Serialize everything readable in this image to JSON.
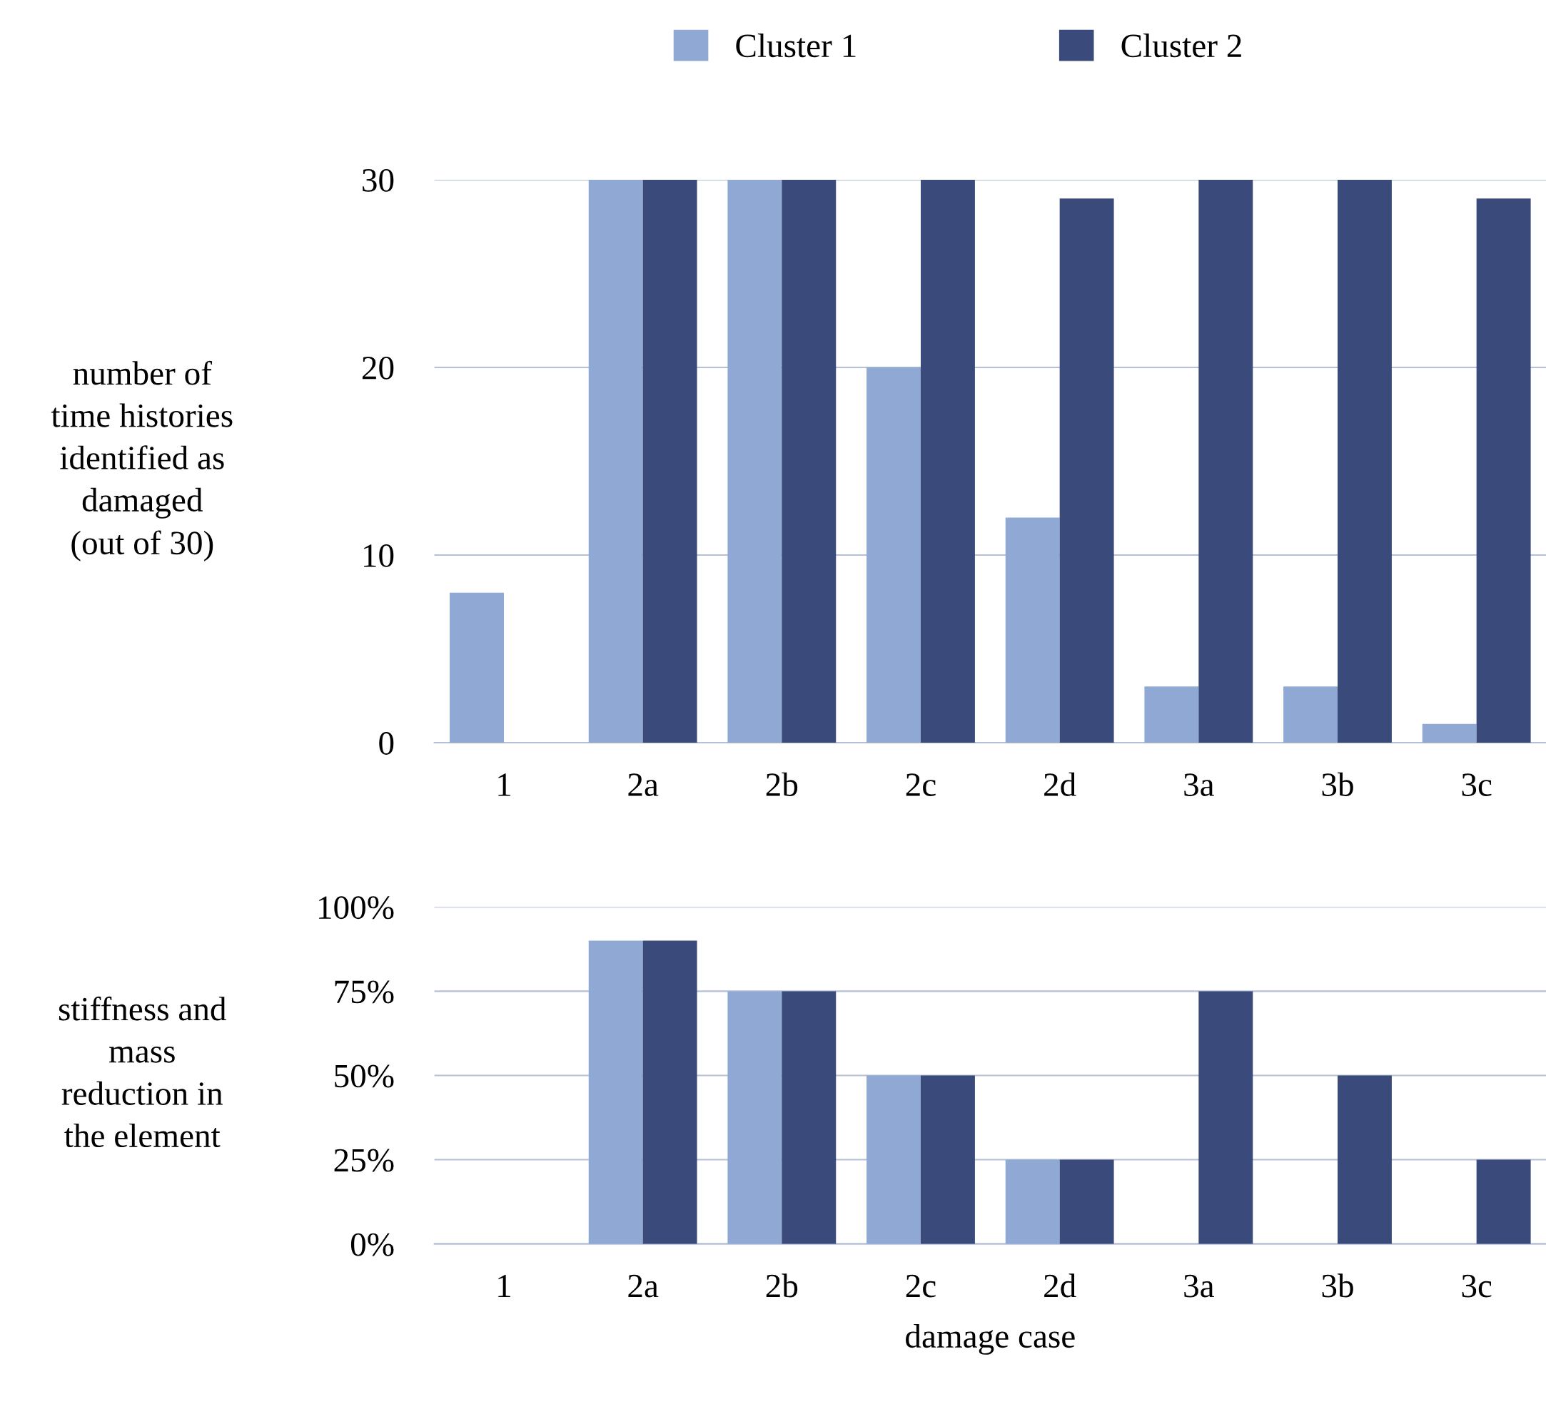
{
  "chart_data": [
    {
      "type": "bar",
      "categories": [
        "1",
        "2a",
        "2b",
        "2c",
        "2d",
        "3a",
        "3b",
        "3c"
      ],
      "ylabel": "number of\ntime histories\nidentified as\ndamaged\n(out of 30)",
      "ylim": [
        0,
        30
      ],
      "yticks": [
        0,
        10,
        20,
        30
      ],
      "grid": "y",
      "legend": "top",
      "series": [
        {
          "name": "Cluster 1",
          "color": "#8fa8d4",
          "values": [
            8,
            30,
            30,
            20,
            12,
            3,
            3,
            1
          ]
        },
        {
          "name": "Cluster 2",
          "color": "#3a4a7a",
          "values": [
            0,
            30,
            30,
            30,
            29,
            30,
            30,
            29
          ]
        }
      ]
    },
    {
      "type": "bar",
      "categories": [
        "1",
        "2a",
        "2b",
        "2c",
        "2d",
        "3a",
        "3b",
        "3c"
      ],
      "ylabel": "stiffness and\nmass\nreduction in\nthe element",
      "xlabel": "damage case",
      "ylim": [
        0,
        100
      ],
      "yticks": [
        {
          "value": 0,
          "label": "0%"
        },
        {
          "value": 25,
          "label": "25%"
        },
        {
          "value": 50,
          "label": "50%"
        },
        {
          "value": 75,
          "label": "75%"
        },
        {
          "value": 100,
          "label": "100%"
        }
      ],
      "grid": "y",
      "series": [
        {
          "color": "#8fa8d4",
          "values": [
            0,
            90,
            75,
            50,
            25,
            0,
            0,
            0
          ]
        },
        {
          "color": "#3a4a7a",
          "values": [
            0,
            90,
            75,
            50,
            25,
            75,
            50,
            25
          ]
        }
      ]
    }
  ]
}
